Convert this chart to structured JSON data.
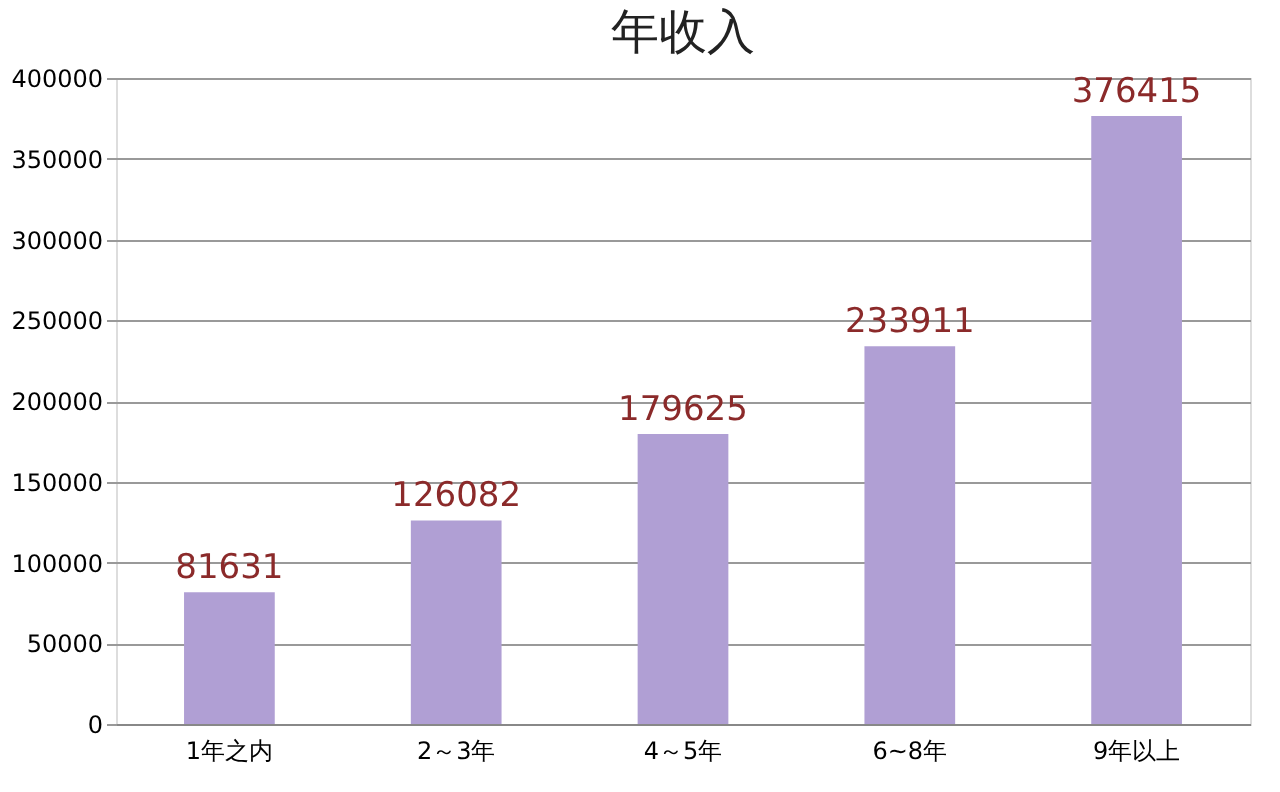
{
  "chart_data": {
    "type": "bar",
    "title": "年收入",
    "categories": [
      "1年之内",
      "2～3年",
      "4～5年",
      "6~8年",
      "9年以上"
    ],
    "values": [
      81631,
      126082,
      179625,
      233911,
      376415
    ],
    "color": "#b09fd4",
    "ylim": [
      0,
      400000
    ],
    "yticks": [
      0,
      50000,
      100000,
      150000,
      200000,
      250000,
      300000,
      350000,
      400000
    ],
    "grid": "y",
    "data_labels": true
  }
}
